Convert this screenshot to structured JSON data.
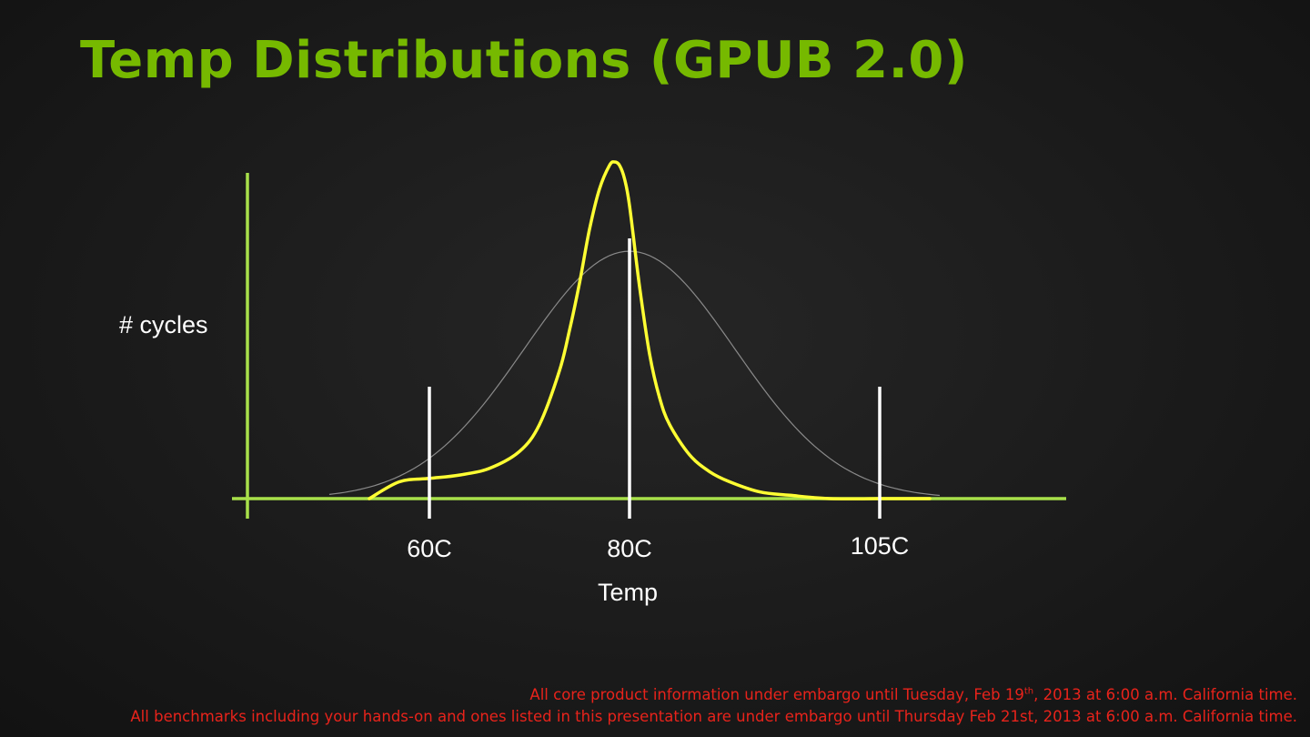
{
  "title": "Temp Distributions (GPUB 2.0)",
  "chart_data": {
    "type": "line",
    "ylabel": "# cycles",
    "xlabel": "Temp",
    "markers": [
      {
        "label": "60C",
        "temp": 60
      },
      {
        "label": "80C",
        "temp": 80
      },
      {
        "label": "105C",
        "temp": 105
      }
    ],
    "xlim": [
      45,
      115
    ],
    "ylim": [
      0,
      1
    ],
    "series": [
      {
        "color": "#ffff33",
        "style": "sharp-peak",
        "x": [
          54,
          57,
          60,
          63,
          66,
          69,
          71,
          73,
          74,
          75,
          76,
          77,
          78,
          78.5,
          79,
          79.5,
          80,
          81,
          82,
          83,
          84,
          86,
          88,
          90,
          93,
          96,
          100,
          105
        ],
        "y": [
          0.0,
          0.05,
          0.06,
          0.07,
          0.09,
          0.14,
          0.22,
          0.38,
          0.5,
          0.64,
          0.8,
          0.92,
          0.99,
          1.0,
          0.99,
          0.95,
          0.87,
          0.63,
          0.43,
          0.3,
          0.22,
          0.13,
          0.08,
          0.05,
          0.02,
          0.01,
          0.0,
          0.0
        ]
      },
      {
        "color": "#8a8a8a",
        "style": "wide-normal",
        "mean": 80,
        "sd": 10.5,
        "peak": 0.735,
        "xrange": [
          50,
          111
        ]
      }
    ],
    "colors": {
      "axis": "#a8e04a",
      "marker": "#ffffff"
    }
  },
  "footer": {
    "line1_a": "All core product information under embargo until Tuesday, Feb 19",
    "line1_sup": "th",
    "line1_b": ", 2013 at 6:00 a.m. California time.",
    "line2": "All benchmarks including your hands-on and ones listed in this presentation are under embargo until Thursday Feb 21st, 2013 at 6:00 a.m. California time."
  }
}
